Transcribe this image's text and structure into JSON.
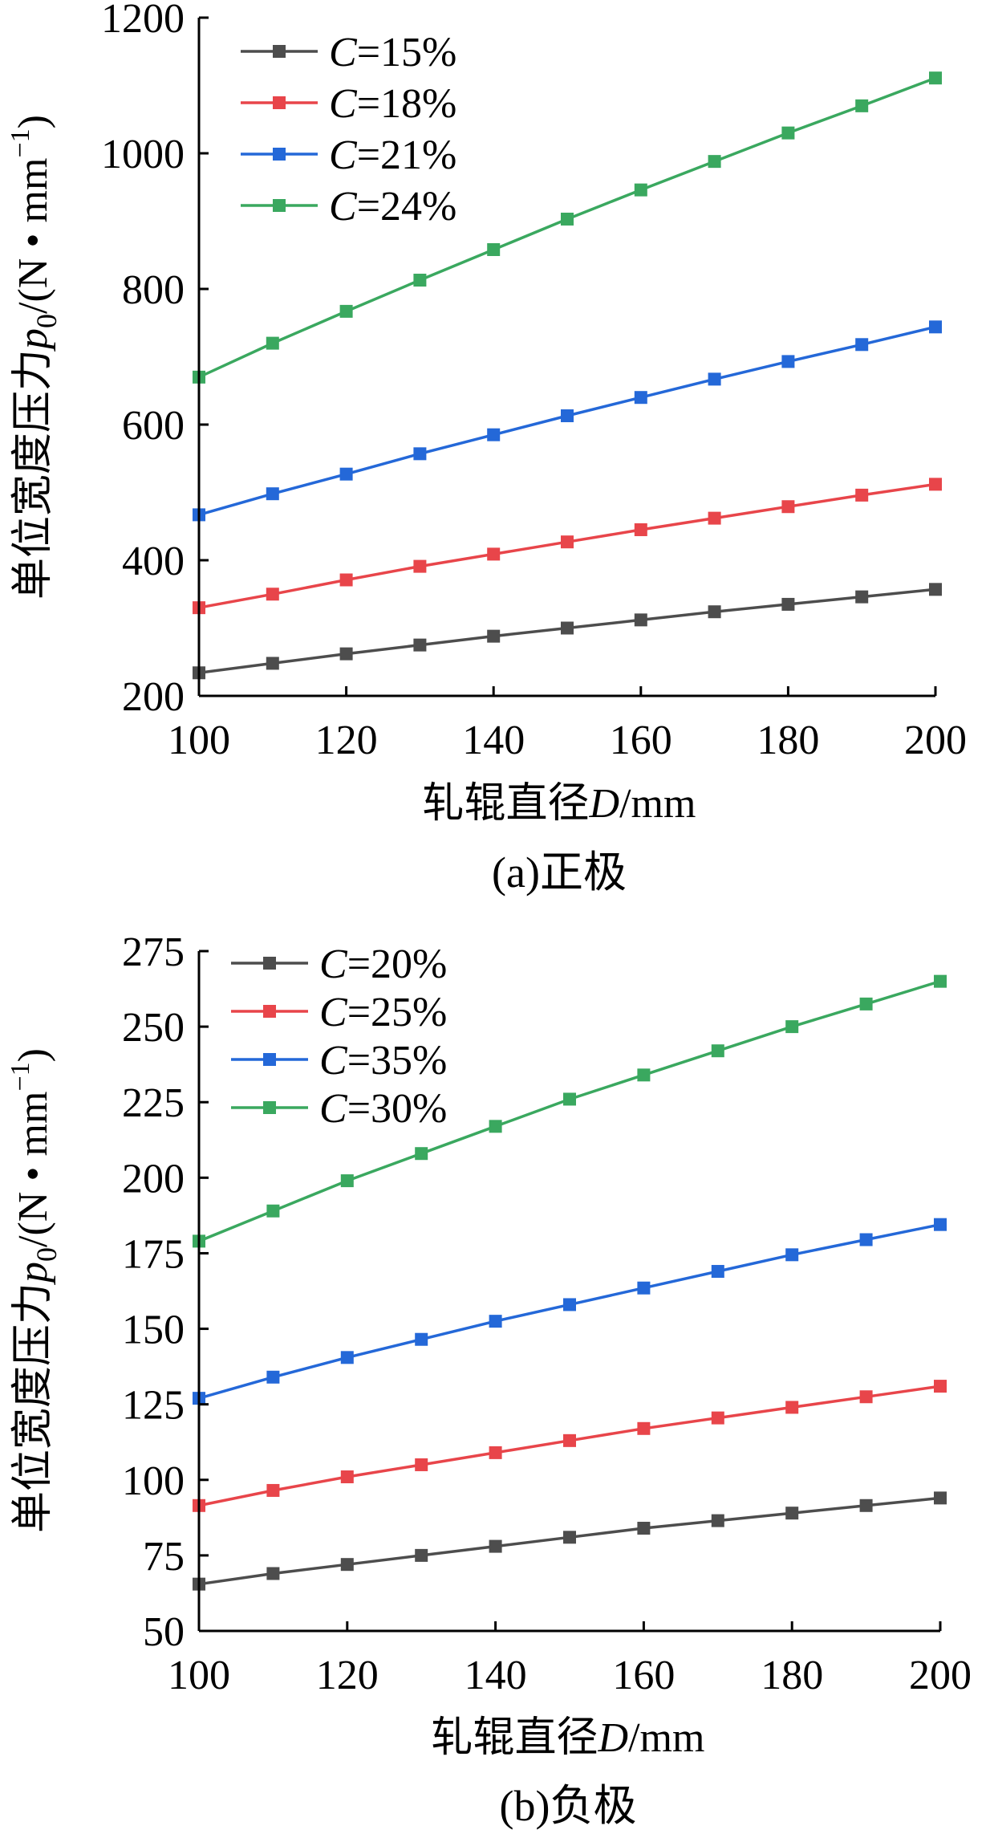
{
  "chart_data": [
    {
      "type": "line",
      "caption": "(a)正极",
      "xlabel": {
        "prefix": "轧辊直径",
        "symbol": "D",
        "unit": "/mm"
      },
      "ylabel": {
        "prefix": "单位宽度压力",
        "symbol": "p",
        "sub": "0",
        "unit": "/(N • mm",
        "sup": "−1",
        "close": ")"
      },
      "xlim": [
        100,
        200
      ],
      "ylim": [
        200,
        1200
      ],
      "xticks": [
        100,
        120,
        140,
        160,
        180,
        200
      ],
      "yticks": [
        200,
        400,
        600,
        800,
        1000,
        1200
      ],
      "x": [
        100,
        110,
        120,
        130,
        140,
        150,
        160,
        170,
        180,
        190,
        200
      ],
      "legend_position": "top-left",
      "series": [
        {
          "label_symbol": "C",
          "label_value": "=15%",
          "color": "#4d4d4d",
          "values": [
            234,
            248,
            262,
            275,
            288,
            300,
            312,
            324,
            335,
            346,
            357
          ]
        },
        {
          "label_symbol": "C",
          "label_value": "=18%",
          "color": "#e8454a",
          "values": [
            330,
            350,
            371,
            391,
            409,
            427,
            445,
            462,
            479,
            496,
            512
          ]
        },
        {
          "label_symbol": "C",
          "label_value": "=21%",
          "color": "#2468d8",
          "values": [
            467,
            498,
            527,
            557,
            585,
            613,
            640,
            667,
            693,
            718,
            744
          ]
        },
        {
          "label_symbol": "C",
          "label_value": "=24%",
          "color": "#3aa85f",
          "values": [
            670,
            720,
            767,
            813,
            858,
            903,
            946,
            988,
            1030,
            1070,
            1111
          ]
        }
      ]
    },
    {
      "type": "line",
      "caption": "(b)负极",
      "xlabel": {
        "prefix": "轧辊直径",
        "symbol": "D",
        "unit": "/mm"
      },
      "ylabel": {
        "prefix": "单位宽度压力",
        "symbol": "p",
        "sub": "0",
        "unit": "/(N • mm",
        "sup": "−1",
        "close": ")"
      },
      "xlim": [
        100,
        200
      ],
      "ylim": [
        50,
        275
      ],
      "xticks": [
        100,
        120,
        140,
        160,
        180,
        200
      ],
      "yticks": [
        50,
        75,
        100,
        125,
        150,
        175,
        200,
        225,
        250,
        275
      ],
      "x": [
        100,
        110,
        120,
        130,
        140,
        150,
        160,
        170,
        180,
        190,
        200
      ],
      "legend_position": "top-left",
      "series": [
        {
          "label_symbol": "C",
          "label_value": "=20%",
          "color": "#4d4d4d",
          "values": [
            65.5,
            69,
            72,
            75,
            78,
            81,
            84,
            86.5,
            89,
            91.5,
            94
          ]
        },
        {
          "label_symbol": "C",
          "label_value": "=25%",
          "color": "#e8454a",
          "values": [
            91.5,
            96.5,
            101,
            105,
            109,
            113,
            117,
            120.5,
            124,
            127.5,
            131
          ]
        },
        {
          "label_symbol": "C",
          "label_value": "=35%",
          "color": "#2468d8",
          "values": [
            127,
            134,
            140.5,
            146.5,
            152.5,
            158,
            163.5,
            169,
            174.5,
            179.5,
            184.5
          ]
        },
        {
          "label_symbol": "C",
          "label_value": "=30%",
          "color": "#3aa85f",
          "values": [
            179,
            189,
            199,
            208,
            217,
            226,
            234,
            242,
            250,
            257.5,
            265
          ]
        }
      ]
    }
  ]
}
